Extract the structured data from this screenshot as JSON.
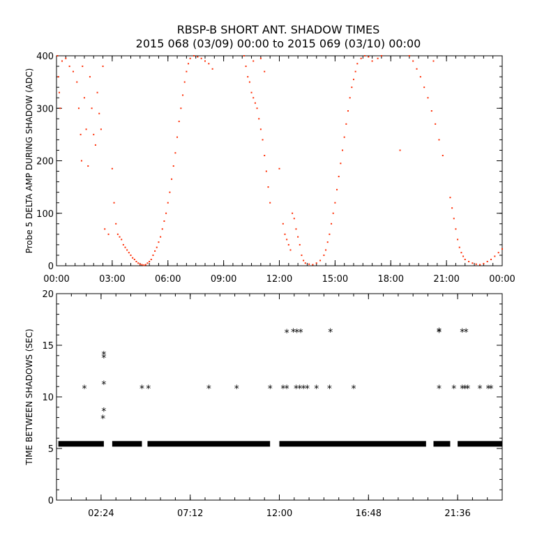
{
  "title_line1": "RBSP-B SHORT ANT. SHADOW TIMES",
  "title_line2": "2015 068 (03/09) 00:00 to 2015 069 (03/10) 00:00",
  "chart_data": [
    {
      "type": "scatter",
      "ylabel": "Probe 5 DELTA AMP DURING SHADOW (ADC)",
      "xlabel": "",
      "x_unit": "hours",
      "xlim": [
        0,
        24
      ],
      "ylim": [
        0,
        400
      ],
      "xticks": [
        0,
        3,
        6,
        9,
        12,
        15,
        18,
        21,
        24
      ],
      "xtick_labels": [
        "00:00",
        "03:00",
        "06:00",
        "09:00",
        "12:00",
        "15:00",
        "18:00",
        "21:00",
        "00:00"
      ],
      "yticks": [
        0,
        100,
        200,
        300,
        400
      ],
      "ytick_labels": [
        "0",
        "100",
        "200",
        "300",
        "400"
      ],
      "point_color": "#ff2a00",
      "grid": false,
      "series": [
        {
          "points": [
            [
              0.05,
              400
            ],
            [
              0.1,
              360
            ],
            [
              0.15,
              330
            ],
            [
              0.2,
              300
            ],
            [
              0.3,
              390
            ],
            [
              0.5,
              395
            ],
            [
              0.7,
              380
            ],
            [
              0.9,
              370
            ],
            [
              1.1,
              350
            ],
            [
              1.2,
              300
            ],
            [
              1.3,
              250
            ],
            [
              1.35,
              200
            ],
            [
              1.4,
              380
            ],
            [
              1.5,
              320
            ],
            [
              1.6,
              260
            ],
            [
              1.7,
              190
            ],
            [
              1.8,
              360
            ],
            [
              1.9,
              300
            ],
            [
              2.0,
              250
            ],
            [
              2.1,
              230
            ],
            [
              2.2,
              330
            ],
            [
              2.3,
              290
            ],
            [
              2.4,
              260
            ],
            [
              2.5,
              380
            ],
            [
              2.6,
              70
            ],
            [
              2.8,
              60
            ],
            [
              3.0,
              185
            ],
            [
              3.1,
              120
            ],
            [
              3.2,
              80
            ],
            [
              3.3,
              60
            ],
            [
              3.4,
              55
            ],
            [
              3.5,
              50
            ],
            [
              3.6,
              40
            ],
            [
              3.7,
              35
            ],
            [
              3.8,
              30
            ],
            [
              3.9,
              25
            ],
            [
              4.0,
              20
            ],
            [
              4.1,
              15
            ],
            [
              4.2,
              12
            ],
            [
              4.3,
              8
            ],
            [
              4.4,
              5
            ],
            [
              4.5,
              3
            ],
            [
              4.6,
              2
            ],
            [
              4.7,
              1
            ],
            [
              4.8,
              2
            ],
            [
              4.9,
              5
            ],
            [
              5.0,
              8
            ],
            [
              5.1,
              12
            ],
            [
              5.2,
              20
            ],
            [
              5.3,
              28
            ],
            [
              5.4,
              35
            ],
            [
              5.5,
              45
            ],
            [
              5.6,
              55
            ],
            [
              5.7,
              70
            ],
            [
              5.8,
              85
            ],
            [
              5.9,
              100
            ],
            [
              6.0,
              120
            ],
            [
              6.1,
              140
            ],
            [
              6.2,
              165
            ],
            [
              6.3,
              190
            ],
            [
              6.4,
              215
            ],
            [
              6.5,
              245
            ],
            [
              6.6,
              275
            ],
            [
              6.7,
              300
            ],
            [
              6.8,
              325
            ],
            [
              6.9,
              350
            ],
            [
              7.0,
              370
            ],
            [
              7.1,
              385
            ],
            [
              7.2,
              395
            ],
            [
              7.4,
              400
            ],
            [
              7.6,
              398
            ],
            [
              7.8,
              395
            ],
            [
              8.0,
              390
            ],
            [
              8.2,
              385
            ],
            [
              8.4,
              375
            ],
            [
              10.1,
              400
            ],
            [
              10.2,
              380
            ],
            [
              10.3,
              360
            ],
            [
              10.4,
              350
            ],
            [
              10.5,
              330
            ],
            [
              10.6,
              320
            ],
            [
              10.7,
              310
            ],
            [
              10.8,
              300
            ],
            [
              10.9,
              280
            ],
            [
              11.0,
              260
            ],
            [
              11.1,
              240
            ],
            [
              11.2,
              210
            ],
            [
              11.3,
              180
            ],
            [
              11.4,
              150
            ],
            [
              11.5,
              120
            ],
            [
              10.6,
              390
            ],
            [
              11.0,
              395
            ],
            [
              11.2,
              370
            ],
            [
              12.0,
              185
            ],
            [
              12.2,
              80
            ],
            [
              12.3,
              60
            ],
            [
              12.4,
              50
            ],
            [
              12.5,
              40
            ],
            [
              12.6,
              30
            ],
            [
              12.7,
              100
            ],
            [
              12.8,
              90
            ],
            [
              12.9,
              70
            ],
            [
              13.0,
              55
            ],
            [
              13.1,
              40
            ],
            [
              13.2,
              20
            ],
            [
              13.3,
              10
            ],
            [
              13.4,
              5
            ],
            [
              13.6,
              3
            ],
            [
              13.8,
              2
            ],
            [
              14.0,
              5
            ],
            [
              14.2,
              10
            ],
            [
              14.4,
              20
            ],
            [
              14.5,
              30
            ],
            [
              14.6,
              45
            ],
            [
              14.7,
              60
            ],
            [
              14.8,
              80
            ],
            [
              14.9,
              100
            ],
            [
              15.0,
              120
            ],
            [
              15.1,
              145
            ],
            [
              15.2,
              170
            ],
            [
              15.3,
              195
            ],
            [
              15.4,
              220
            ],
            [
              15.5,
              245
            ],
            [
              15.6,
              270
            ],
            [
              15.7,
              295
            ],
            [
              15.8,
              320
            ],
            [
              15.9,
              340
            ],
            [
              16.0,
              355
            ],
            [
              16.1,
              370
            ],
            [
              16.2,
              385
            ],
            [
              16.4,
              395
            ],
            [
              16.6,
              400
            ],
            [
              16.8,
              398
            ],
            [
              17.0,
              390
            ],
            [
              17.3,
              395
            ],
            [
              17.5,
              400
            ],
            [
              18.5,
              220
            ],
            [
              19.0,
              400
            ],
            [
              19.2,
              390
            ],
            [
              19.4,
              375
            ],
            [
              19.6,
              360
            ],
            [
              19.8,
              340
            ],
            [
              20.0,
              320
            ],
            [
              20.2,
              295
            ],
            [
              20.4,
              270
            ],
            [
              20.6,
              240
            ],
            [
              20.3,
              390
            ],
            [
              20.8,
              210
            ],
            [
              21.2,
              130
            ],
            [
              21.3,
              110
            ],
            [
              21.4,
              90
            ],
            [
              21.5,
              70
            ],
            [
              21.6,
              50
            ],
            [
              21.7,
              35
            ],
            [
              21.8,
              25
            ],
            [
              21.9,
              18
            ],
            [
              22.0,
              12
            ],
            [
              22.2,
              8
            ],
            [
              22.4,
              5
            ],
            [
              22.6,
              3
            ],
            [
              22.8,
              2
            ],
            [
              23.0,
              4
            ],
            [
              23.2,
              8
            ],
            [
              23.4,
              12
            ],
            [
              23.6,
              18
            ],
            [
              23.8,
              25
            ],
            [
              24.0,
              32
            ]
          ]
        }
      ]
    },
    {
      "type": "scatter",
      "ylabel": "TIME BETWEEN SHADOWS (SEC)",
      "xlabel": "",
      "x_unit": "hours",
      "xlim": [
        0,
        24
      ],
      "ylim": [
        0,
        20
      ],
      "xticks": [
        2.4,
        7.2,
        12.0,
        16.8,
        21.6
      ],
      "xtick_labels": [
        "02:24",
        "07:12",
        "12:00",
        "16:48",
        "21:36"
      ],
      "yticks": [
        0,
        5,
        10,
        15,
        20
      ],
      "ytick_labels": [
        "0",
        "5",
        "10",
        "15",
        "20"
      ],
      "marker": "*",
      "point_color": "#000000",
      "grid": false,
      "baseline_band": {
        "y": 5.45,
        "segments": [
          [
            0.1,
            2.55
          ],
          [
            3.0,
            4.6
          ],
          [
            4.9,
            11.5
          ],
          [
            12.0,
            19.9
          ],
          [
            20.3,
            21.2
          ],
          [
            21.6,
            24.0
          ]
        ]
      },
      "series": [
        {
          "points": [
            [
              1.5,
              10.8
            ],
            [
              2.55,
              14.1
            ],
            [
              2.55,
              13.8
            ],
            [
              2.55,
              11.2
            ],
            [
              2.55,
              8.6
            ],
            [
              2.5,
              7.9
            ],
            [
              4.6,
              10.8
            ],
            [
              4.95,
              10.8
            ],
            [
              8.2,
              10.8
            ],
            [
              9.7,
              10.8
            ],
            [
              11.5,
              10.8
            ],
            [
              12.2,
              10.8
            ],
            [
              12.4,
              10.8
            ],
            [
              12.4,
              16.2
            ],
            [
              12.75,
              16.3
            ],
            [
              12.95,
              16.25
            ],
            [
              13.15,
              16.25
            ],
            [
              12.9,
              10.8
            ],
            [
              13.1,
              10.8
            ],
            [
              13.3,
              10.8
            ],
            [
              13.5,
              10.8
            ],
            [
              14.0,
              10.8
            ],
            [
              14.7,
              10.8
            ],
            [
              14.75,
              16.3
            ],
            [
              16.0,
              10.8
            ],
            [
              20.6,
              16.35
            ],
            [
              20.6,
              16.25
            ],
            [
              20.6,
              10.8
            ],
            [
              21.4,
              10.8
            ],
            [
              21.85,
              16.3
            ],
            [
              22.05,
              16.3
            ],
            [
              21.85,
              10.8
            ],
            [
              22.0,
              10.8
            ],
            [
              22.15,
              10.8
            ],
            [
              22.8,
              10.8
            ],
            [
              23.25,
              10.8
            ],
            [
              23.4,
              10.8
            ]
          ]
        }
      ]
    }
  ]
}
